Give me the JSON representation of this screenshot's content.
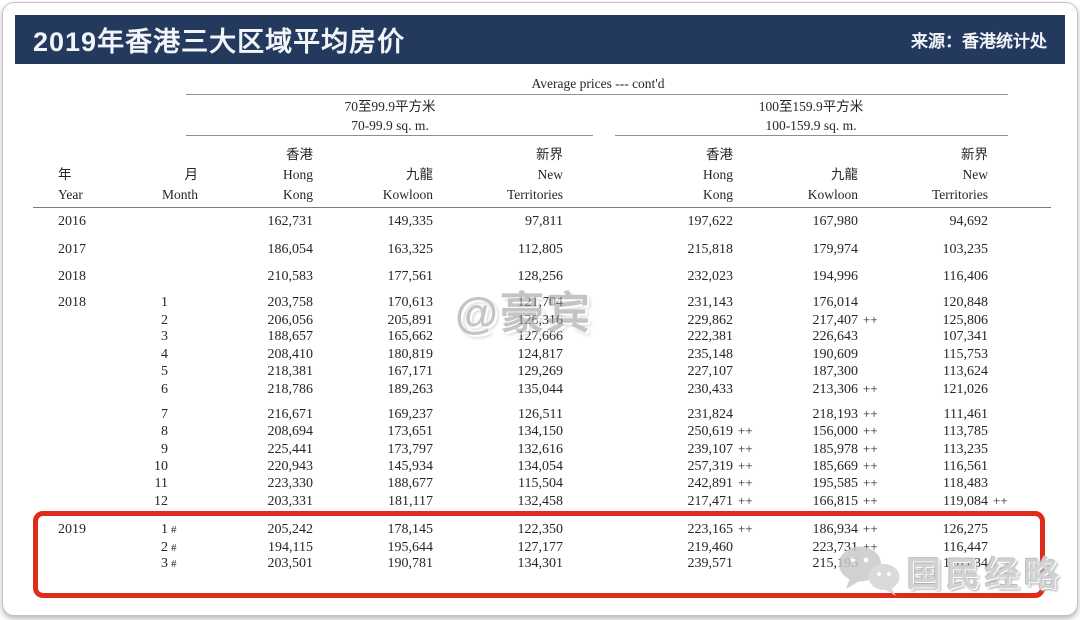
{
  "header": {
    "title": "2019年香港三大区域平均房价",
    "source": "来源：香港统计处"
  },
  "table": {
    "caption": "Average prices --- cont'd",
    "group_c": {
      "zh": "70至99.9平方米",
      "en": "70-99.9 sq. m."
    },
    "group_d": {
      "zh": "100至159.9平方米",
      "en": "100-159.9 sq. m."
    },
    "col_year": {
      "lines": [
        "",
        "年",
        "Year"
      ]
    },
    "col_month": {
      "lines": [
        "",
        "月",
        "Month"
      ]
    },
    "regions": [
      {
        "lines": [
          "香港",
          "Hong",
          "Kong"
        ]
      },
      {
        "lines": [
          "",
          "九龍",
          "Kowloon"
        ]
      },
      {
        "lines": [
          "新界",
          "New",
          "Territories"
        ]
      }
    ],
    "rows": [
      {
        "year": "2016",
        "month": "",
        "mmark": "",
        "cells": [
          [
            "162,731",
            ""
          ],
          [
            "149,335",
            ""
          ],
          [
            "97,811",
            ""
          ],
          [
            "197,622",
            ""
          ],
          [
            "167,980",
            ""
          ],
          [
            "94,692",
            ""
          ]
        ]
      },
      {
        "year": "2017",
        "month": "",
        "mmark": "",
        "cells": [
          [
            "186,054",
            ""
          ],
          [
            "163,325",
            ""
          ],
          [
            "112,805",
            ""
          ],
          [
            "215,818",
            ""
          ],
          [
            "179,974",
            ""
          ],
          [
            "103,235",
            ""
          ]
        ]
      },
      {
        "year": "2018",
        "month": "",
        "mmark": "",
        "cells": [
          [
            "210,583",
            ""
          ],
          [
            "177,561",
            ""
          ],
          [
            "128,256",
            ""
          ],
          [
            "232,023",
            ""
          ],
          [
            "194,996",
            ""
          ],
          [
            "116,406",
            ""
          ]
        ]
      },
      {
        "year": "2018",
        "month": "1",
        "mmark": "",
        "cells": [
          [
            "203,758",
            ""
          ],
          [
            "170,613",
            ""
          ],
          [
            "121,704",
            ""
          ],
          [
            "231,143",
            ""
          ],
          [
            "176,014",
            ""
          ],
          [
            "120,848",
            ""
          ]
        ]
      },
      {
        "year": "",
        "month": "2",
        "mmark": "",
        "cells": [
          [
            "206,056",
            ""
          ],
          [
            "205,891",
            ""
          ],
          [
            "126,316",
            ""
          ],
          [
            "229,862",
            ""
          ],
          [
            "217,407",
            "++"
          ],
          [
            "125,806",
            ""
          ]
        ]
      },
      {
        "year": "",
        "month": "3",
        "mmark": "",
        "cells": [
          [
            "188,657",
            ""
          ],
          [
            "165,662",
            ""
          ],
          [
            "127,666",
            ""
          ],
          [
            "222,381",
            ""
          ],
          [
            "226,643",
            ""
          ],
          [
            "107,341",
            ""
          ]
        ]
      },
      {
        "year": "",
        "month": "4",
        "mmark": "",
        "cells": [
          [
            "208,410",
            ""
          ],
          [
            "180,819",
            ""
          ],
          [
            "124,817",
            ""
          ],
          [
            "235,148",
            ""
          ],
          [
            "190,609",
            ""
          ],
          [
            "115,753",
            ""
          ]
        ]
      },
      {
        "year": "",
        "month": "5",
        "mmark": "",
        "cells": [
          [
            "218,381",
            ""
          ],
          [
            "167,171",
            ""
          ],
          [
            "129,269",
            ""
          ],
          [
            "227,107",
            ""
          ],
          [
            "187,300",
            ""
          ],
          [
            "113,624",
            ""
          ]
        ]
      },
      {
        "year": "",
        "month": "6",
        "mmark": "",
        "cells": [
          [
            "218,786",
            ""
          ],
          [
            "189,263",
            ""
          ],
          [
            "135,044",
            ""
          ],
          [
            "230,433",
            ""
          ],
          [
            "213,306",
            "++"
          ],
          [
            "121,026",
            ""
          ]
        ]
      },
      {
        "year": "",
        "month": "7",
        "mmark": "",
        "cells": [
          [
            "216,671",
            ""
          ],
          [
            "169,237",
            ""
          ],
          [
            "126,511",
            ""
          ],
          [
            "231,824",
            ""
          ],
          [
            "218,193",
            "++"
          ],
          [
            "111,461",
            ""
          ]
        ]
      },
      {
        "year": "",
        "month": "8",
        "mmark": "",
        "cells": [
          [
            "208,694",
            ""
          ],
          [
            "173,651",
            ""
          ],
          [
            "134,150",
            ""
          ],
          [
            "250,619",
            "++"
          ],
          [
            "156,000",
            "++"
          ],
          [
            "113,785",
            ""
          ]
        ]
      },
      {
        "year": "",
        "month": "9",
        "mmark": "",
        "cells": [
          [
            "225,441",
            ""
          ],
          [
            "173,797",
            ""
          ],
          [
            "132,616",
            ""
          ],
          [
            "239,107",
            "++"
          ],
          [
            "185,978",
            "++"
          ],
          [
            "113,235",
            ""
          ]
        ]
      },
      {
        "year": "",
        "month": "10",
        "mmark": "",
        "cells": [
          [
            "220,943",
            ""
          ],
          [
            "145,934",
            ""
          ],
          [
            "134,054",
            ""
          ],
          [
            "257,319",
            "++"
          ],
          [
            "185,669",
            "++"
          ],
          [
            "116,561",
            ""
          ]
        ]
      },
      {
        "year": "",
        "month": "11",
        "mmark": "",
        "cells": [
          [
            "223,330",
            ""
          ],
          [
            "188,677",
            ""
          ],
          [
            "115,504",
            ""
          ],
          [
            "242,891",
            "++"
          ],
          [
            "195,585",
            "++"
          ],
          [
            "118,483",
            ""
          ]
        ]
      },
      {
        "year": "",
        "month": "12",
        "mmark": "",
        "cells": [
          [
            "203,331",
            ""
          ],
          [
            "181,117",
            ""
          ],
          [
            "132,458",
            ""
          ],
          [
            "217,471",
            "++"
          ],
          [
            "166,815",
            "++"
          ],
          [
            "119,084",
            "++"
          ]
        ]
      },
      {
        "year": "2019",
        "month": "1",
        "mmark": "#",
        "cells": [
          [
            "205,242",
            ""
          ],
          [
            "178,145",
            ""
          ],
          [
            "122,350",
            ""
          ],
          [
            "223,165",
            "++"
          ],
          [
            "186,934",
            "++"
          ],
          [
            "126,275",
            ""
          ]
        ]
      },
      {
        "year": "",
        "month": "2",
        "mmark": "#",
        "cells": [
          [
            "194,115",
            ""
          ],
          [
            "195,644",
            ""
          ],
          [
            "127,177",
            ""
          ],
          [
            "219,460",
            ""
          ],
          [
            "223,731",
            "++"
          ],
          [
            "116,447",
            ""
          ]
        ]
      },
      {
        "year": "",
        "month": "3",
        "mmark": "#",
        "cells": [
          [
            "203,501",
            ""
          ],
          [
            "190,781",
            ""
          ],
          [
            "134,301",
            ""
          ],
          [
            "239,571",
            ""
          ],
          [
            "215,195",
            ""
          ],
          [
            "118,634",
            ""
          ]
        ]
      }
    ]
  },
  "watermark": "@豪宾",
  "logo_text": "国民经略",
  "colors": {
    "titlebar_bg": "#24395e",
    "highlight_red": "#de2b1b",
    "rule_gray": "#8f8f8f"
  }
}
